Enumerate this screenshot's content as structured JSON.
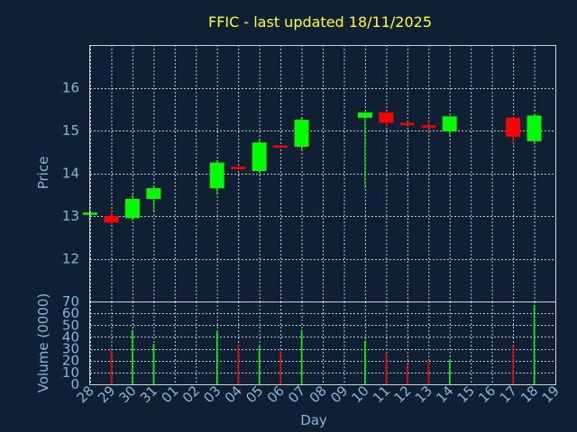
{
  "chart_data": [
    {
      "type": "candlestick",
      "title": "FFIC - last updated 18/11/2025",
      "ylabel": "Price",
      "xlabel": "",
      "ylim": [
        11,
        17
      ],
      "yticks": [
        12,
        13,
        14,
        15,
        16
      ],
      "grid": true,
      "colors": {
        "up": "#00ff00",
        "down": "#ff0000"
      },
      "x": [
        "28",
        "29",
        "30",
        "31",
        "01",
        "02",
        "03",
        "04",
        "05",
        "06",
        "07",
        "08",
        "09",
        "10",
        "11",
        "12",
        "13",
        "14",
        "15",
        "16",
        "17",
        "18",
        "19"
      ],
      "candles": [
        {
          "day": "28",
          "open": 13.05,
          "close": 13.08,
          "high": 13.1,
          "low": 13.03
        },
        {
          "day": "29",
          "open": 13.0,
          "close": 12.85,
          "high": 13.15,
          "low": 12.8
        },
        {
          "day": "30",
          "open": 12.95,
          "close": 13.4,
          "high": 13.5,
          "low": 12.9
        },
        {
          "day": "31",
          "open": 13.4,
          "close": 13.65,
          "high": 13.7,
          "low": 13.1
        },
        {
          "day": "03",
          "open": 13.65,
          "close": 14.25,
          "high": 14.3,
          "low": 13.5
        },
        {
          "day": "04",
          "open": 14.15,
          "close": 14.1,
          "high": 14.15,
          "low": 14.08
        },
        {
          "day": "05",
          "open": 14.05,
          "close": 14.72,
          "high": 14.8,
          "low": 14.0
        },
        {
          "day": "06",
          "open": 14.65,
          "close": 14.63,
          "high": 14.65,
          "low": 14.62
        },
        {
          "day": "07",
          "open": 14.62,
          "close": 15.25,
          "high": 15.3,
          "low": 14.55
        },
        {
          "day": "10",
          "open": 15.3,
          "close": 15.42,
          "high": 15.45,
          "low": 13.65
        },
        {
          "day": "11",
          "open": 15.42,
          "close": 15.18,
          "high": 15.45,
          "low": 15.1
        },
        {
          "day": "12",
          "open": 15.18,
          "close": 15.15,
          "high": 15.22,
          "low": 15.12
        },
        {
          "day": "13",
          "open": 15.12,
          "close": 15.08,
          "high": 15.25,
          "low": 15.0
        },
        {
          "day": "14",
          "open": 14.98,
          "close": 15.33,
          "high": 15.35,
          "low": 14.85
        },
        {
          "day": "17",
          "open": 15.3,
          "close": 14.85,
          "high": 15.32,
          "low": 14.65
        },
        {
          "day": "18",
          "open": 14.75,
          "close": 15.35,
          "high": 15.38,
          "low": 14.7
        }
      ]
    },
    {
      "type": "bar",
      "ylabel": "Volume (0000)",
      "xlabel": "Day",
      "ylim": [
        0,
        70
      ],
      "yticks": [
        0,
        10,
        20,
        30,
        40,
        50,
        60,
        70
      ],
      "grid": true,
      "categories": [
        "28",
        "29",
        "30",
        "31",
        "01",
        "02",
        "03",
        "04",
        "05",
        "06",
        "07",
        "08",
        "09",
        "10",
        "11",
        "12",
        "13",
        "14",
        "15",
        "16",
        "17",
        "18",
        "19"
      ],
      "bars": [
        {
          "day": "28",
          "value": 0,
          "color": "#00ff00"
        },
        {
          "day": "29",
          "value": 30,
          "color": "#ff0000"
        },
        {
          "day": "30",
          "value": 46,
          "color": "#00ff00"
        },
        {
          "day": "31",
          "value": 34,
          "color": "#00ff00"
        },
        {
          "day": "03",
          "value": 45,
          "color": "#00ff00"
        },
        {
          "day": "04",
          "value": 34,
          "color": "#ff0000"
        },
        {
          "day": "05",
          "value": 32,
          "color": "#00ff00"
        },
        {
          "day": "06",
          "value": 28,
          "color": "#ff0000"
        },
        {
          "day": "07",
          "value": 46,
          "color": "#00ff00"
        },
        {
          "day": "10",
          "value": 37,
          "color": "#00ff00"
        },
        {
          "day": "11",
          "value": 26,
          "color": "#ff0000"
        },
        {
          "day": "12",
          "value": 17,
          "color": "#ff0000"
        },
        {
          "day": "13",
          "value": 19,
          "color": "#ff0000"
        },
        {
          "day": "14",
          "value": 21,
          "color": "#00ff00"
        },
        {
          "day": "17",
          "value": 33,
          "color": "#ff0000"
        },
        {
          "day": "18",
          "value": 67,
          "color": "#00ff00"
        }
      ]
    }
  ]
}
